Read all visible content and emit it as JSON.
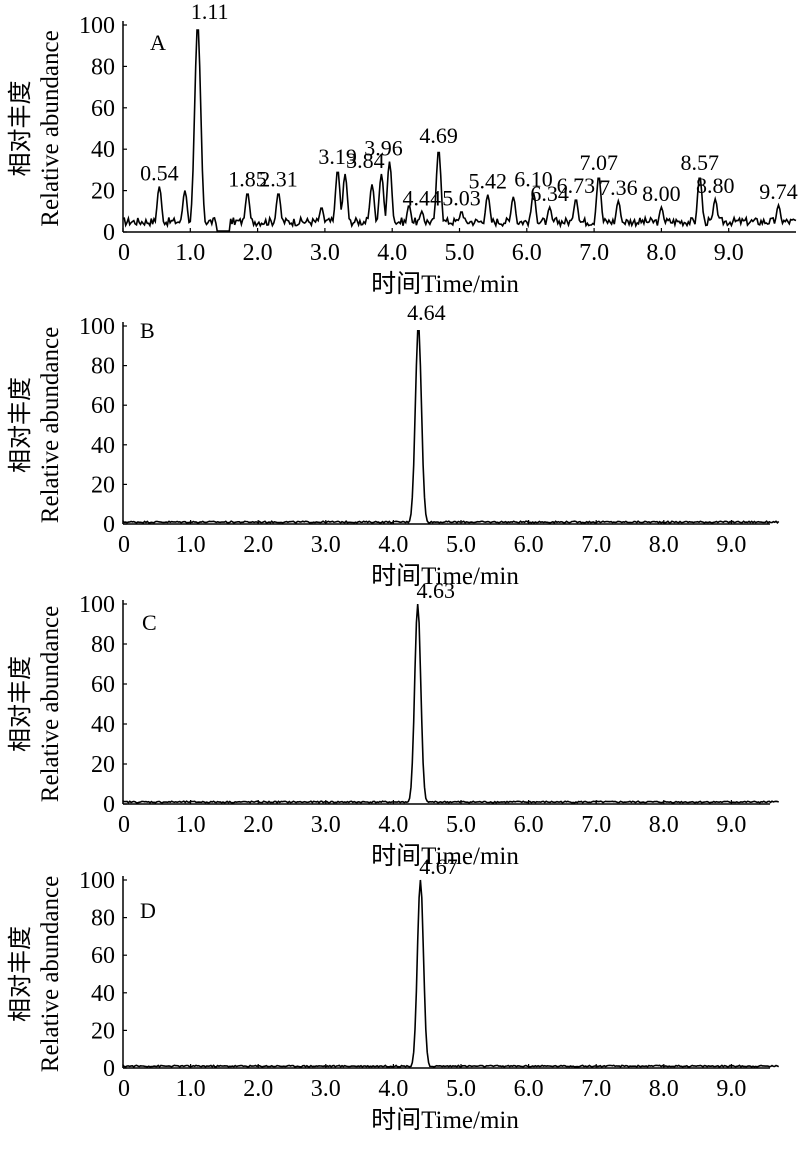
{
  "figure": {
    "y_label_cn": "相对丰度",
    "y_label_en": "Relative abundance",
    "x_label": "时间Time/min"
  },
  "chart_data": [
    {
      "type": "line",
      "panel": "A",
      "xlabel": "时间Time/min",
      "ylabel": "相对丰度 Relative abundance",
      "xlim": [
        0,
        10
      ],
      "ylim": [
        0,
        100
      ],
      "x_ticks": [
        "0",
        "1.0",
        "2.0",
        "3.0",
        "4.0",
        "5.0",
        "6.0",
        "7.0",
        "8.0",
        "9.0"
      ],
      "y_ticks": [
        "0",
        "20",
        "40",
        "60",
        "80",
        "100"
      ],
      "peak_labels": [
        "0.54",
        "1.11",
        "1.85",
        "2.31",
        "3.19",
        "3.84",
        "3.96",
        "4.44",
        "4.69",
        "5.03",
        "5.42",
        "6.10",
        "6.34",
        "6.73",
        "7.07",
        "7.36",
        "8.00",
        "8.57",
        "8.80",
        "9.74"
      ],
      "peaks": [
        {
          "x": 0.54,
          "y": 22
        },
        {
          "x": 0.92,
          "y": 20
        },
        {
          "x": 1.11,
          "y": 100
        },
        {
          "x": 1.85,
          "y": 19
        },
        {
          "x": 2.31,
          "y": 19
        },
        {
          "x": 2.95,
          "y": 12
        },
        {
          "x": 3.19,
          "y": 30
        },
        {
          "x": 3.3,
          "y": 28
        },
        {
          "x": 3.7,
          "y": 23
        },
        {
          "x": 3.84,
          "y": 28
        },
        {
          "x": 3.96,
          "y": 34
        },
        {
          "x": 4.25,
          "y": 13
        },
        {
          "x": 4.44,
          "y": 10
        },
        {
          "x": 4.69,
          "y": 40
        },
        {
          "x": 5.03,
          "y": 10
        },
        {
          "x": 5.42,
          "y": 18
        },
        {
          "x": 5.8,
          "y": 17
        },
        {
          "x": 6.1,
          "y": 19
        },
        {
          "x": 6.34,
          "y": 12
        },
        {
          "x": 6.73,
          "y": 16
        },
        {
          "x": 7.07,
          "y": 27
        },
        {
          "x": 7.36,
          "y": 15
        },
        {
          "x": 8.0,
          "y": 12
        },
        {
          "x": 8.57,
          "y": 27
        },
        {
          "x": 8.8,
          "y": 16
        },
        {
          "x": 9.74,
          "y": 13
        }
      ],
      "baseline": "noisy"
    },
    {
      "type": "line",
      "panel": "B",
      "xlabel": "时间Time/min",
      "ylabel": "相对丰度 Relative abundance",
      "xlim": [
        0,
        9.7
      ],
      "ylim": [
        0,
        100
      ],
      "x_ticks": [
        "0",
        "1.0",
        "2.0",
        "3.0",
        "4.0",
        "5.0",
        "6.0",
        "7.0",
        "8.0",
        "9.0"
      ],
      "y_ticks": [
        "0",
        "20",
        "40",
        "60",
        "80",
        "100"
      ],
      "peak_labels": [
        "4.64"
      ],
      "peaks": [
        {
          "x": 4.64,
          "y": 100
        }
      ],
      "baseline": "flat"
    },
    {
      "type": "line",
      "panel": "C",
      "xlabel": "时间Time/min",
      "ylabel": "相对丰度 Relative abundance",
      "xlim": [
        0,
        9.7
      ],
      "ylim": [
        0,
        100
      ],
      "x_ticks": [
        "0",
        "1.0",
        "2.0",
        "3.0",
        "4.0",
        "5.0",
        "6.0",
        "7.0",
        "8.0",
        "9.0"
      ],
      "y_ticks": [
        "0",
        "20",
        "40",
        "60",
        "80",
        "100"
      ],
      "peak_labels": [
        "4.63"
      ],
      "peaks": [
        {
          "x": 4.63,
          "y": 100
        }
      ],
      "baseline": "flat"
    },
    {
      "type": "line",
      "panel": "D",
      "xlabel": "时间Time/min",
      "ylabel": "相对丰度 Relative abundance",
      "xlim": [
        0,
        9.7
      ],
      "ylim": [
        0,
        100
      ],
      "x_ticks": [
        "0",
        "1.0",
        "2.0",
        "3.0",
        "4.0",
        "5.0",
        "6.0",
        "7.0",
        "8.0",
        "9.0"
      ],
      "y_ticks": [
        "0",
        "20",
        "40",
        "60",
        "80",
        "100"
      ],
      "peak_labels": [
        "4.67"
      ],
      "peaks": [
        {
          "x": 4.67,
          "y": 100
        }
      ],
      "baseline": "flat"
    }
  ]
}
